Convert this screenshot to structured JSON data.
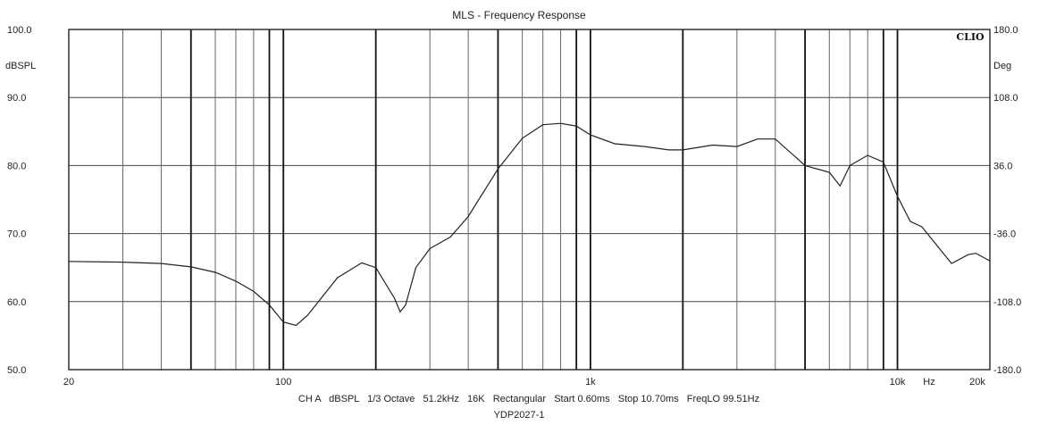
{
  "chart_data": {
    "type": "line",
    "title": "MLS - Frequency Response",
    "brand": "CLIO",
    "xscale": "log",
    "xlim": [
      20,
      20000
    ],
    "ylim": [
      50,
      100
    ],
    "y2lim": [
      -180,
      180
    ],
    "ylabel": "dBSPL",
    "y2label": "Deg",
    "xunit": "Hz",
    "grid": true,
    "yticks": [
      {
        "value": 100,
        "label": "100.0"
      },
      {
        "value": 90,
        "label": "90.0"
      },
      {
        "value": 80,
        "label": "80.0"
      },
      {
        "value": 70,
        "label": "70.0"
      },
      {
        "value": 60,
        "label": "60.0"
      },
      {
        "value": 50,
        "label": "50.0"
      }
    ],
    "y2ticks": [
      {
        "value": 180,
        "label": "180.0"
      },
      {
        "value": 108,
        "label": "108.0"
      },
      {
        "value": 36,
        "label": "36.0"
      },
      {
        "value": -36,
        "label": "-36.0"
      },
      {
        "value": -108,
        "label": "-108.0"
      },
      {
        "value": -180,
        "label": "-180.0"
      }
    ],
    "xticks": [
      {
        "value": 20,
        "label": "20"
      },
      {
        "value": 100,
        "label": "100"
      },
      {
        "value": 1000,
        "label": "1k"
      },
      {
        "value": 10000,
        "label": "10k"
      },
      {
        "value": 20000,
        "label": "20k"
      }
    ],
    "info_line": "CH A   dBSPL   1/3 Octave   51.2kHz   16K   Rectangular   Start 0.60ms   Stop 10.70ms   FreqLO 99.51Hz",
    "footer": "YDP2027-1",
    "series": [
      {
        "x": [
          20,
          30,
          40,
          50,
          60,
          70,
          80,
          90,
          100,
          110,
          120,
          150,
          180,
          200,
          230,
          240,
          250,
          270,
          300,
          350,
          400,
          500,
          600,
          700,
          800,
          900,
          1000,
          1200,
          1500,
          1800,
          2000,
          2500,
          3000,
          3500,
          4000,
          5000,
          6000,
          6500,
          7000,
          8000,
          9000,
          10000,
          11000,
          12000,
          15000,
          17000,
          18000,
          20000
        ],
        "y": [
          65.9,
          65.8,
          65.6,
          65.1,
          64.3,
          63.0,
          61.5,
          59.5,
          57.0,
          56.5,
          58.0,
          63.5,
          65.7,
          65.0,
          60.5,
          58.5,
          59.5,
          65.0,
          67.8,
          69.5,
          72.5,
          79.5,
          84.0,
          86.0,
          86.2,
          85.8,
          84.5,
          83.2,
          82.8,
          82.3,
          82.3,
          83.0,
          82.8,
          83.9,
          83.9,
          80.0,
          79.0,
          77.0,
          80.0,
          81.5,
          80.5,
          75.5,
          71.8,
          71.0,
          65.6,
          66.9,
          67.1,
          66.0
        ]
      }
    ]
  }
}
